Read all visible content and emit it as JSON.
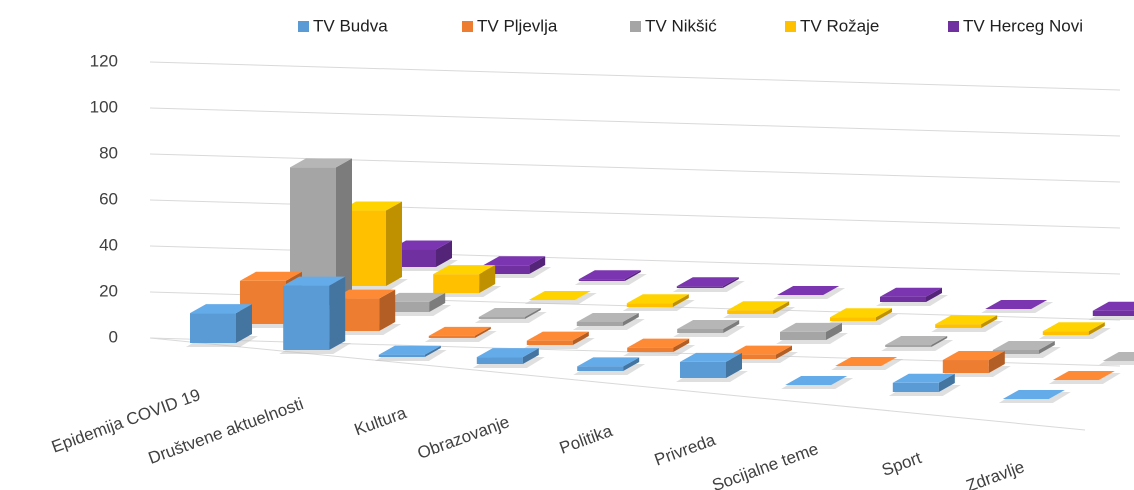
{
  "chart_data": {
    "type": "bar3d",
    "categories": [
      "Epidemija COVID 19",
      "Društvene aktuelnosti",
      "Kultura",
      "Obrazovanje",
      "Politika",
      "Privreda",
      "Socijalne teme",
      "Sport",
      "Zdravlje"
    ],
    "series": [
      {
        "name": "TV Budva",
        "color": "#5b9bd5",
        "values": [
          13,
          28,
          1,
          3,
          2,
          7,
          0,
          4,
          0
        ]
      },
      {
        "name": "TV Pljevlja",
        "color": "#ed7d31",
        "values": [
          20,
          15,
          1,
          2,
          2,
          2,
          0,
          6,
          0
        ]
      },
      {
        "name": "TV Nikšić",
        "color": "#a5a5a5",
        "values": [
          68,
          5,
          1,
          2,
          2,
          4,
          1,
          2,
          0
        ]
      },
      {
        "name": "TV Rožaje",
        "color": "#ffc000",
        "values": [
          40,
          10,
          0,
          2,
          2,
          2,
          2,
          2,
          0
        ]
      },
      {
        "name": "TV Herceg Novi",
        "color": "#7030a0",
        "values": [
          10,
          5,
          1,
          1,
          0,
          3,
          0,
          3,
          1
        ]
      }
    ],
    "ylim": [
      0,
      120
    ],
    "yticks": [
      0,
      20,
      40,
      60,
      80,
      100,
      120
    ],
    "grid": true,
    "legend": "top"
  }
}
